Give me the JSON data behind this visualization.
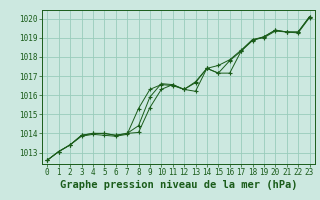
{
  "title": "Graphe pression niveau de la mer (hPa)",
  "bg_color": "#cce8e0",
  "grid_color": "#99ccbb",
  "line_color": "#1a5c1a",
  "x": [
    0,
    1,
    2,
    3,
    4,
    5,
    6,
    7,
    8,
    9,
    10,
    11,
    12,
    13,
    14,
    15,
    16,
    17,
    18,
    19,
    20,
    21,
    22,
    23
  ],
  "line1": [
    1012.6,
    1013.05,
    1013.4,
    1013.9,
    1014.0,
    1014.0,
    1013.9,
    1014.0,
    1014.05,
    1015.35,
    1016.3,
    1016.55,
    1016.3,
    1016.2,
    1017.4,
    1017.15,
    1017.15,
    1018.3,
    1018.85,
    1019.05,
    1019.4,
    1019.3,
    1019.3,
    1020.1
  ],
  "line2": [
    1012.6,
    1013.05,
    1013.4,
    1013.9,
    1014.0,
    1014.0,
    1013.9,
    1014.0,
    1014.4,
    1015.9,
    1016.6,
    1016.55,
    1016.3,
    1016.7,
    1017.4,
    1017.55,
    1017.85,
    1018.35,
    1018.9,
    1019.05,
    1019.4,
    1019.3,
    1019.3,
    1020.1
  ],
  "line3": [
    1012.6,
    1013.05,
    1013.4,
    1013.85,
    1013.95,
    1013.9,
    1013.85,
    1013.95,
    1015.3,
    1016.3,
    1016.55,
    1016.5,
    1016.3,
    1016.65,
    1017.4,
    1017.15,
    1017.8,
    1018.3,
    1018.9,
    1019.0,
    1019.35,
    1019.3,
    1019.25,
    1020.05
  ],
  "ylim_min": 1012.4,
  "ylim_max": 1020.45,
  "yticks": [
    1013,
    1014,
    1015,
    1016,
    1017,
    1018,
    1019,
    1020
  ],
  "xticks": [
    0,
    1,
    2,
    3,
    4,
    5,
    6,
    7,
    8,
    9,
    10,
    11,
    12,
    13,
    14,
    15,
    16,
    17,
    18,
    19,
    20,
    21,
    22,
    23
  ],
  "tick_fontsize": 5.5,
  "title_fontsize": 7.5
}
